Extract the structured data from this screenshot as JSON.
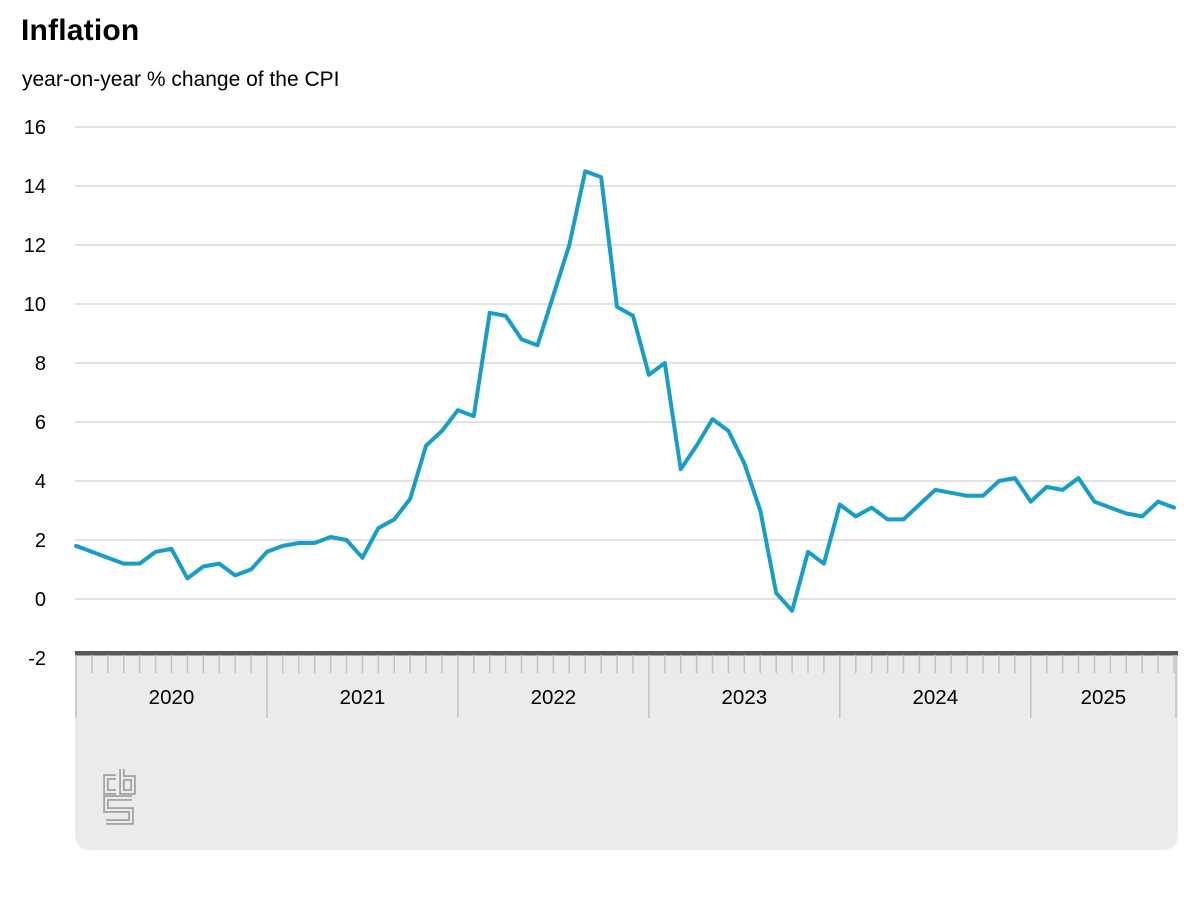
{
  "page": {
    "title": "Inflation",
    "subtitle": "year-on-year % change of the CPI"
  },
  "chart_data": {
    "type": "line",
    "title": "Inflation",
    "subtitle": "year-on-year % change of the CPI",
    "unit": "%",
    "legend": "none",
    "grid": "horizontal",
    "x": [
      "2020-01",
      "2020-02",
      "2020-03",
      "2020-04",
      "2020-05",
      "2020-06",
      "2020-07",
      "2020-08",
      "2020-09",
      "2020-10",
      "2020-11",
      "2020-12",
      "2021-01",
      "2021-02",
      "2021-03",
      "2021-04",
      "2021-05",
      "2021-06",
      "2021-07",
      "2021-08",
      "2021-09",
      "2021-10",
      "2021-11",
      "2021-12",
      "2022-01",
      "2022-02",
      "2022-03",
      "2022-04",
      "2022-05",
      "2022-06",
      "2022-07",
      "2022-08",
      "2022-09",
      "2022-10",
      "2022-11",
      "2022-12",
      "2023-01",
      "2023-02",
      "2023-03",
      "2023-04",
      "2023-05",
      "2023-06",
      "2023-07",
      "2023-08",
      "2023-09",
      "2023-10",
      "2023-11",
      "2023-12",
      "2024-01",
      "2024-02",
      "2024-03",
      "2024-04",
      "2024-05",
      "2024-06",
      "2024-07",
      "2024-08",
      "2024-09",
      "2024-10",
      "2024-11",
      "2024-12",
      "2025-01",
      "2025-02",
      "2025-03",
      "2025-04",
      "2025-05",
      "2025-06",
      "2025-07",
      "2025-08",
      "2025-09",
      "2025-10"
    ],
    "series": [
      {
        "name": "CPI year-on-year % change",
        "values": [
          1.8,
          1.6,
          1.4,
          1.2,
          1.2,
          1.6,
          1.7,
          0.7,
          1.1,
          1.2,
          0.8,
          1.0,
          1.6,
          1.8,
          1.9,
          1.9,
          2.1,
          2.0,
          1.4,
          2.4,
          2.7,
          3.4,
          5.2,
          5.7,
          6.4,
          6.2,
          9.7,
          9.6,
          8.8,
          8.6,
          10.3,
          12.0,
          14.5,
          14.3,
          9.9,
          9.6,
          7.6,
          8.0,
          4.4,
          5.2,
          6.1,
          5.7,
          4.6,
          3.0,
          0.2,
          -0.4,
          1.6,
          1.2,
          3.2,
          2.8,
          3.1,
          2.7,
          2.7,
          3.2,
          3.7,
          3.6,
          3.5,
          3.5,
          4.0,
          4.1,
          3.3,
          3.8,
          3.7,
          4.1,
          3.3,
          3.1,
          2.9,
          2.8,
          3.3,
          3.1
        ]
      }
    ],
    "x_year_labels": [
      "2020",
      "2021",
      "2022",
      "2023",
      "2024",
      "2025"
    ],
    "y_tick_labels": [
      16,
      14,
      12,
      10,
      8,
      6,
      4,
      2,
      0,
      -2
    ],
    "ylim": [
      -2,
      16
    ],
    "colors": {
      "line": "#189cc8",
      "gridline": "#c6c6c6",
      "axis_bar": "#58595b",
      "tick": "#c2c2c2",
      "band": "#ebebeb",
      "logo": "#9c9c9c",
      "text": "#000000"
    },
    "logo_name": "cbs-logo"
  }
}
